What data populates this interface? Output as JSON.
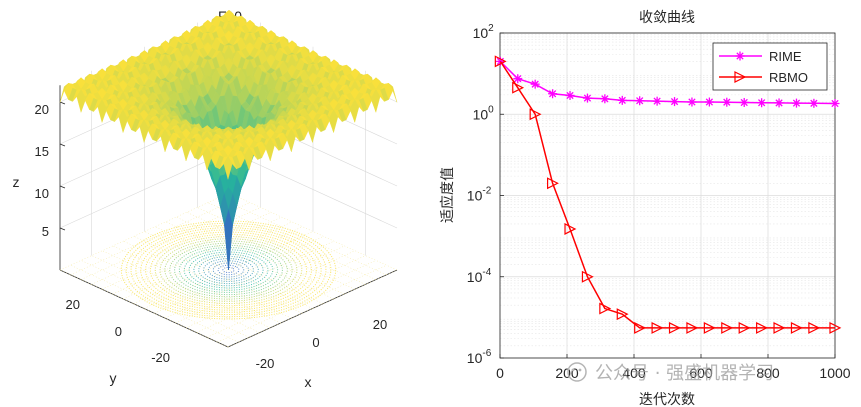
{
  "left_plot": {
    "title": "F10",
    "z_label": "z",
    "x_label": "x",
    "y_label": "y",
    "z_ticks": [
      "5",
      "10",
      "15",
      "20"
    ],
    "x_ticks": [
      "-20",
      "0",
      "20"
    ],
    "y_ticks": [
      "20",
      "0",
      "-20"
    ],
    "colors": {
      "high": "#f9e03b",
      "mid": "#26b89a",
      "low": "#3a4fd0"
    }
  },
  "chart_data": [
    {
      "type": "surface",
      "title": "F10",
      "xlabel": "x",
      "ylabel": "y",
      "zlabel": "z",
      "xlim": [
        -32,
        32
      ],
      "ylim": [
        -32,
        32
      ],
      "zlim": [
        0,
        22
      ],
      "plateau_value": 21.8,
      "minimum": {
        "x": 0,
        "y": 0,
        "z": 0
      }
    },
    {
      "type": "line",
      "title": "收敛曲线",
      "xlabel": "迭代次数",
      "ylabel": "适应度值",
      "yscale": "log",
      "xlim": [
        0,
        1000
      ],
      "ylim": [
        1e-06,
        100
      ],
      "x_ticks": [
        "0",
        "200",
        "400",
        "600",
        "800",
        "1000"
      ],
      "y_ticks": [
        {
          "base": "10",
          "exp": "2"
        },
        {
          "base": "10",
          "exp": "0"
        },
        {
          "base": "10",
          "exp": "-2"
        },
        {
          "base": "10",
          "exp": "-4"
        },
        {
          "base": "10",
          "exp": "-6"
        }
      ],
      "x": [
        1,
        53,
        105,
        157,
        209,
        261,
        313,
        365,
        417,
        469,
        521,
        573,
        625,
        677,
        729,
        781,
        833,
        885,
        937,
        1000
      ],
      "series": [
        {
          "name": "RIME",
          "color": "#ff00ff",
          "marker": "asterisk",
          "values": [
            20,
            7.5,
            5.5,
            3.2,
            2.9,
            2.5,
            2.4,
            2.2,
            2.15,
            2.1,
            2.05,
            2.0,
            2.0,
            1.98,
            1.95,
            1.92,
            1.9,
            1.88,
            1.86,
            1.84
          ]
        },
        {
          "name": "RBMO",
          "color": "#ff0000",
          "marker": "triangle-right",
          "values": [
            20,
            4.5,
            1.0,
            0.02,
            0.0015,
            0.0001,
            1.65e-05,
            1.2e-05,
            5.5e-06,
            5.5e-06,
            5.5e-06,
            5.5e-06,
            5.5e-06,
            5.5e-06,
            5.5e-06,
            5.5e-06,
            5.5e-06,
            5.5e-06,
            5.5e-06,
            5.5e-06
          ]
        }
      ],
      "legend": "top-right",
      "grid": true
    }
  ],
  "watermark": "公众号 · 强盛机器学习"
}
